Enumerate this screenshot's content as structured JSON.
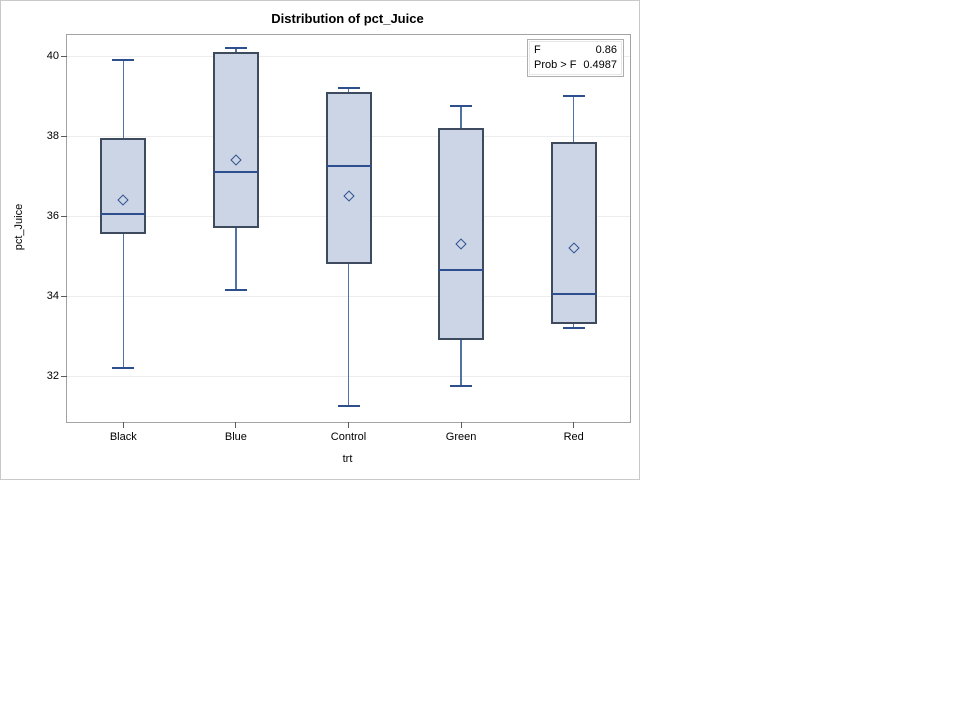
{
  "chart_data": {
    "type": "boxplot",
    "title": "Distribution of pct_Juice",
    "xlabel": "trt",
    "ylabel": "pct_Juice",
    "categories": [
      "Black",
      "Blue",
      "Control",
      "Green",
      "Red"
    ],
    "yticks": [
      40,
      38,
      36,
      34,
      32
    ],
    "ylim": [
      30.85,
      40.53
    ],
    "grid": "horizontal",
    "legend": "none",
    "series": [
      {
        "category": "Black",
        "whisker_low": 32.2,
        "q1": 35.55,
        "median": 36.05,
        "q3": 37.95,
        "whisker_high": 39.9,
        "mean": 36.4
      },
      {
        "category": "Blue",
        "whisker_low": 34.15,
        "q1": 35.7,
        "median": 37.1,
        "q3": 40.1,
        "whisker_high": 40.2,
        "mean": 37.4
      },
      {
        "category": "Control",
        "whisker_low": 31.25,
        "q1": 34.8,
        "median": 37.25,
        "q3": 39.1,
        "whisker_high": 39.2,
        "mean": 36.5
      },
      {
        "category": "Green",
        "whisker_low": 31.75,
        "q1": 32.9,
        "median": 34.65,
        "q3": 38.2,
        "whisker_high": 38.75,
        "mean": 35.3
      },
      {
        "category": "Red",
        "whisker_low": 33.2,
        "q1": 33.3,
        "median": 34.05,
        "q3": 37.85,
        "whisker_high": 39.0,
        "mean": 35.2
      }
    ],
    "inset_table": {
      "rows": [
        {
          "label": "F",
          "value": "0.86"
        },
        {
          "label": "Prob > F",
          "value": "0.4987"
        }
      ]
    },
    "colors": {
      "box_fill": "#ccd5e5",
      "box_border": "#3e4b5e",
      "median": "#2e4f8e",
      "whisker": "#4f74a3",
      "cap": "#2e4f8e",
      "mean_marker": "#2e4f8e",
      "gridline": "#ededed",
      "frame": "#a3a3a3",
      "tick": "#5a5a5a",
      "text": "#000000"
    }
  }
}
